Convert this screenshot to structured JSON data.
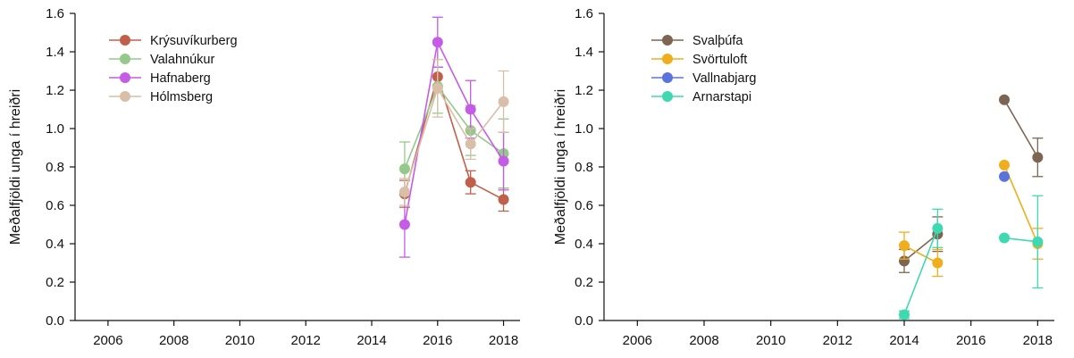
{
  "chart_data": [
    {
      "type": "line",
      "xlabel": "",
      "ylabel": "Meðalfjöldi unga í hreiðri",
      "xlim": [
        2005,
        2018.5
      ],
      "ylim": [
        0,
        1.6
      ],
      "xticks": [
        2006,
        2008,
        2010,
        2012,
        2014,
        2016,
        2018
      ],
      "yticks": [
        0.0,
        0.2,
        0.4,
        0.6,
        0.8,
        1.0,
        1.2,
        1.4,
        1.6
      ],
      "ytick_labels": [
        "0.0",
        "0.2",
        "0.4",
        "0.6",
        "0.8",
        "1.0",
        "1.2",
        "1.4",
        "1.6"
      ],
      "xtick_labels": [
        "2006",
        "2008",
        "2010",
        "2012",
        "2014",
        "2016",
        "2018"
      ],
      "legend_position": "top-left",
      "grid": false,
      "series": [
        {
          "name": "Krýsuvíkurberg",
          "color": "#c0604a",
          "points": [
            {
              "x": 2015,
              "y": 0.66,
              "err": 0.07
            },
            {
              "x": 2016,
              "y": 1.27,
              "err": 0.05
            },
            {
              "x": 2017,
              "y": 0.72,
              "err": 0.06
            },
            {
              "x": 2018,
              "y": 0.63,
              "err": 0.06
            }
          ]
        },
        {
          "name": "Valahnúkur",
          "color": "#94c98b",
          "points": [
            {
              "x": 2015,
              "y": 0.79,
              "err": 0.14
            },
            {
              "x": 2016,
              "y": 1.22,
              "err": 0.14
            },
            {
              "x": 2017,
              "y": 0.99,
              "err": 0.13
            },
            {
              "x": 2018,
              "y": 0.87,
              "err": 0.18
            }
          ]
        },
        {
          "name": "Hafnaberg",
          "color": "#c55ce6",
          "points": [
            {
              "x": 2015,
              "y": 0.5,
              "err": 0.17
            },
            {
              "x": 2016,
              "y": 1.45,
              "err": 0.13
            },
            {
              "x": 2017,
              "y": 1.1,
              "err": 0.15
            },
            {
              "x": 2018,
              "y": 0.83,
              "err": 0.15
            }
          ]
        },
        {
          "name": "Hólmsberg",
          "color": "#d9bea8",
          "points": [
            {
              "x": 2015,
              "y": 0.67,
              "err": 0.07
            },
            {
              "x": 2016,
              "y": 1.21,
              "err": 0.15
            },
            {
              "x": 2017,
              "y": 0.92,
              "err": 0.08
            },
            {
              "x": 2018,
              "y": 1.14,
              "err": 0.16
            }
          ]
        }
      ]
    },
    {
      "type": "line",
      "xlabel": "",
      "ylabel": "Meðalfjöldi unga í hreiðri",
      "xlim": [
        2005,
        2018.5
      ],
      "ylim": [
        0,
        1.6
      ],
      "xticks": [
        2006,
        2008,
        2010,
        2012,
        2014,
        2016,
        2018
      ],
      "yticks": [
        0.0,
        0.2,
        0.4,
        0.6,
        0.8,
        1.0,
        1.2,
        1.4,
        1.6
      ],
      "ytick_labels": [
        "0.0",
        "0.2",
        "0.4",
        "0.6",
        "0.8",
        "1.0",
        "1.2",
        "1.4",
        "1.6"
      ],
      "xtick_labels": [
        "2006",
        "2008",
        "2010",
        "2012",
        "2014",
        "2016",
        "2018"
      ],
      "legend_position": "top-left",
      "grid": false,
      "series": [
        {
          "name": "Svalþúfa",
          "color": "#7d6553",
          "points": [
            {
              "x": 2014,
              "y": 0.31,
              "err": 0.06
            },
            {
              "x": 2015,
              "y": 0.45,
              "err": 0.09
            },
            {
              "x": 2017,
              "y": 1.15,
              "err": 0
            },
            {
              "x": 2018,
              "y": 0.85,
              "err": 0.1
            }
          ]
        },
        {
          "name": "Svörtuloft",
          "color": "#f0ae1e",
          "points": [
            {
              "x": 2014,
              "y": 0.39,
              "err": 0.07
            },
            {
              "x": 2015,
              "y": 0.3,
              "err": 0.07
            },
            {
              "x": 2017,
              "y": 0.81,
              "err": 0
            },
            {
              "x": 2018,
              "y": 0.4,
              "err": 0.08
            }
          ]
        },
        {
          "name": "Vallnabjarg",
          "color": "#5b73dc",
          "points": [
            {
              "x": 2017,
              "y": 0.75,
              "err": 0
            }
          ]
        },
        {
          "name": "Arnarstapi",
          "color": "#3ed9b0",
          "points": [
            {
              "x": 2014,
              "y": 0.03,
              "err": 0.02
            },
            {
              "x": 2015,
              "y": 0.48,
              "err": 0.1
            },
            {
              "x": 2017,
              "y": 0.43,
              "err": 0
            },
            {
              "x": 2018,
              "y": 0.41,
              "err": 0.24
            }
          ]
        }
      ]
    }
  ]
}
